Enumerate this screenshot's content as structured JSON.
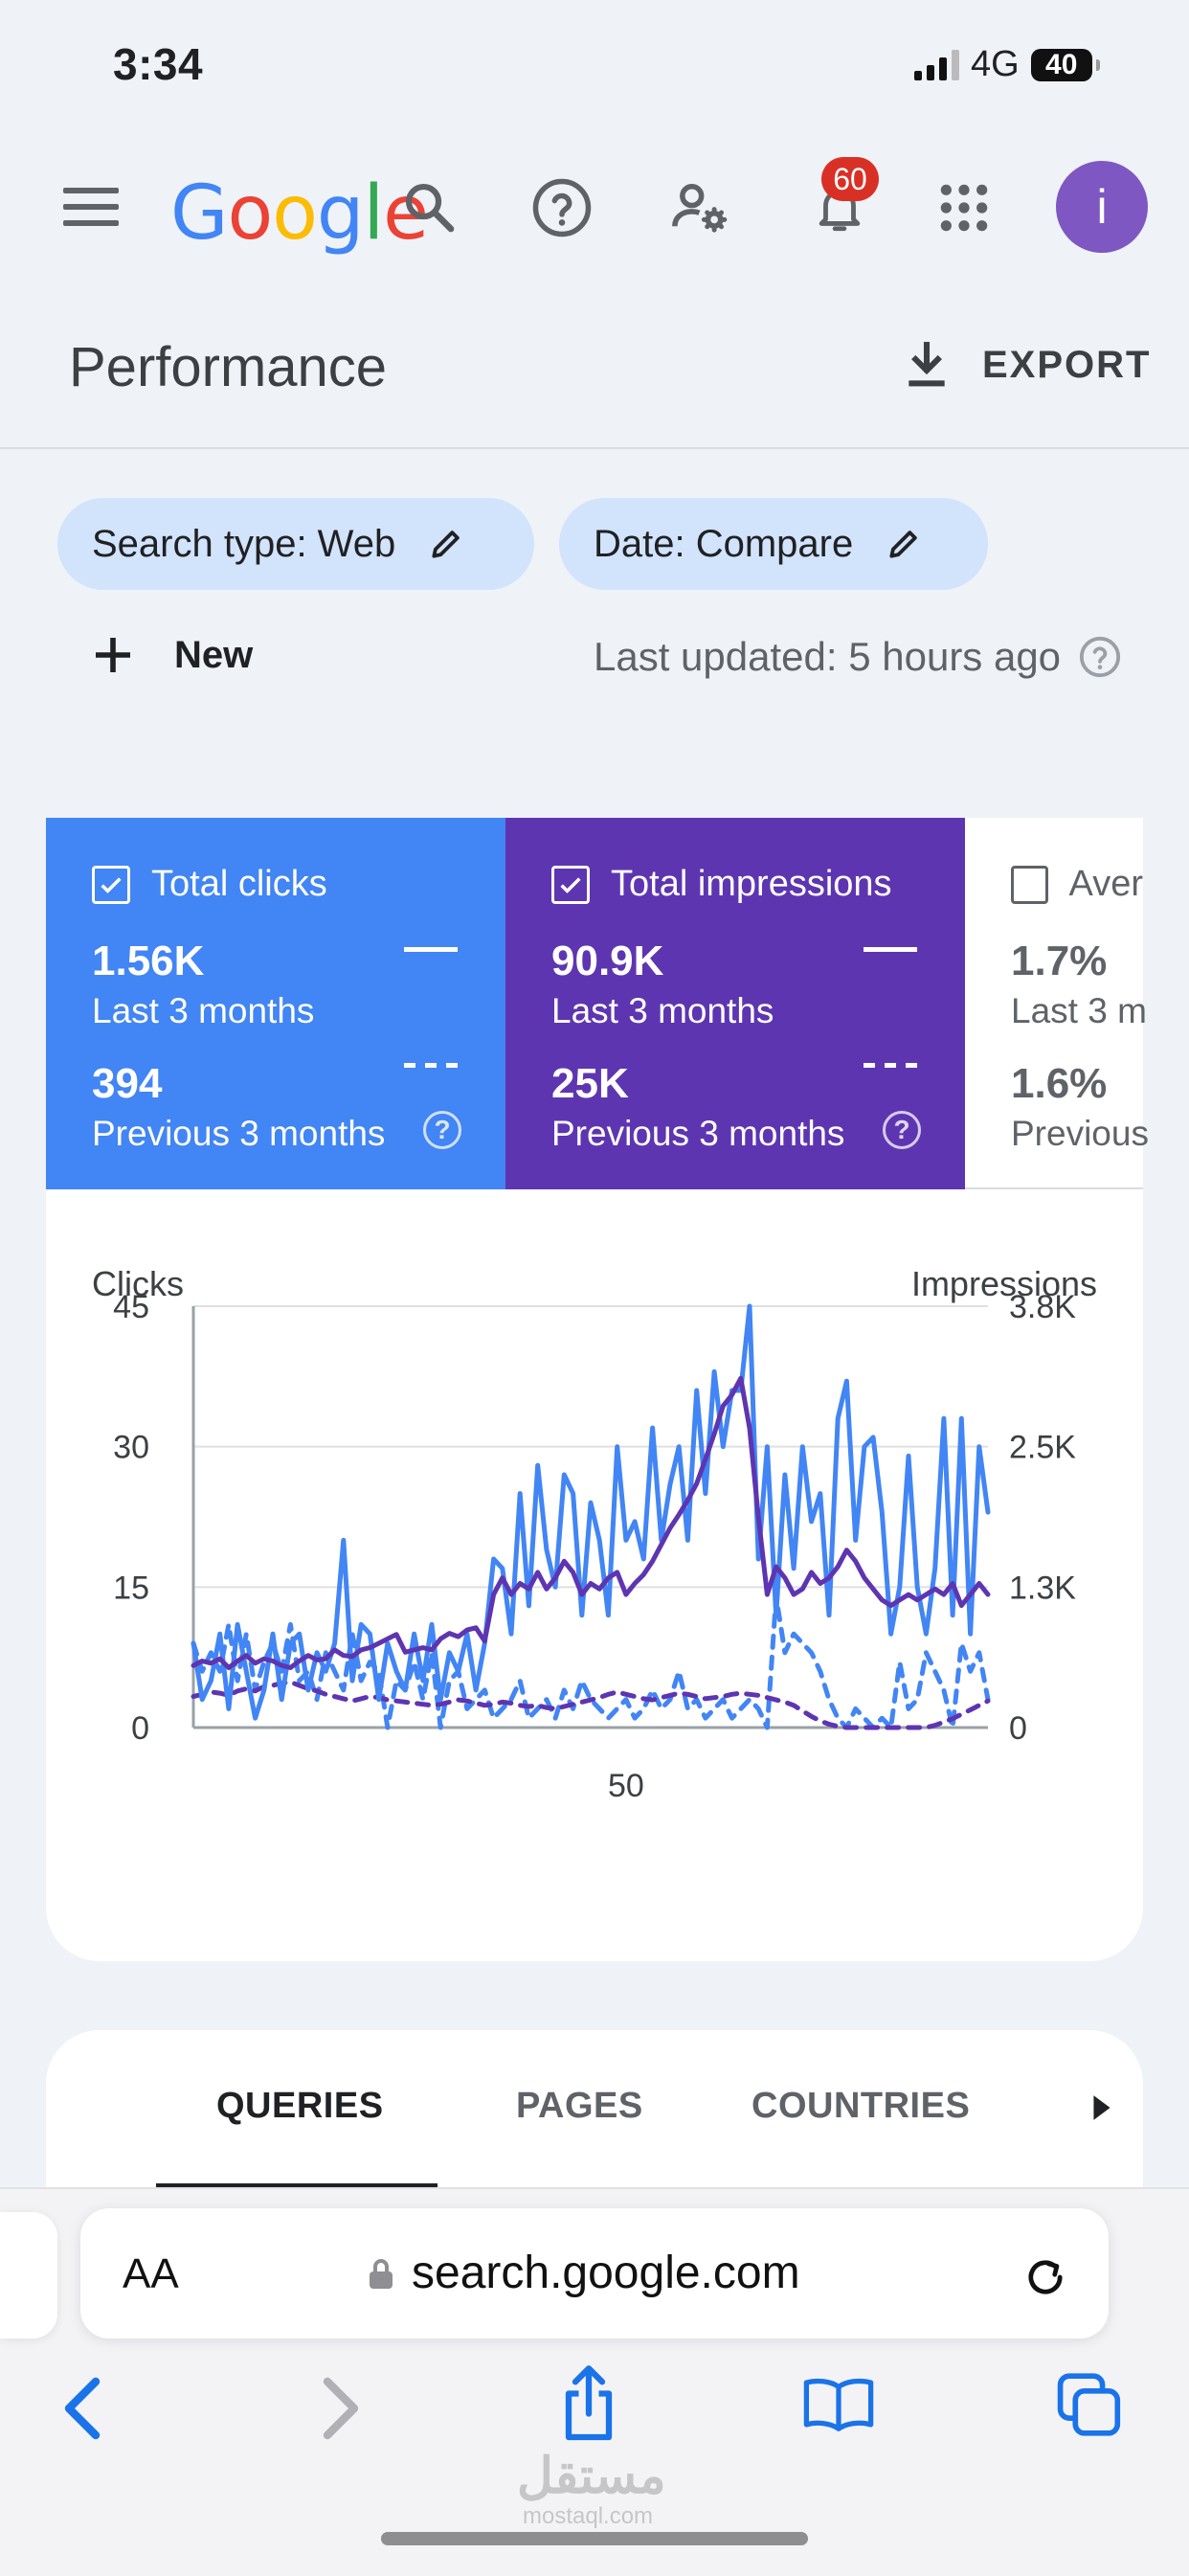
{
  "status_bar": {
    "time": "3:34",
    "network": "4G",
    "battery": "40"
  },
  "app_bar": {
    "logo": "Google",
    "notification_count": "60",
    "avatar_letter": "i",
    "icons": [
      "menu-icon",
      "search-icon",
      "help-icon",
      "manage-users-icon",
      "bell-icon",
      "apps-grid-icon"
    ]
  },
  "header": {
    "title": "Performance",
    "export_label": "EXPORT"
  },
  "filters": {
    "chips": [
      {
        "label": "Search type: Web"
      },
      {
        "label": "Date: Compare"
      }
    ],
    "new_label": "New",
    "last_updated": "Last updated: 5 hours ago"
  },
  "metrics": [
    {
      "label": "Total clicks",
      "checked": true,
      "value": "1.56K",
      "period": "Last 3 months",
      "prev_value": "394",
      "prev_period": "Previous 3 months",
      "color": "#4285f4"
    },
    {
      "label": "Total impressions",
      "checked": true,
      "value": "90.9K",
      "period": "Last 3 months",
      "prev_value": "25K",
      "prev_period": "Previous 3 months",
      "color": "#5e35b1"
    },
    {
      "label": "Aver",
      "checked": false,
      "value": "1.7%",
      "period": "Last 3 m",
      "prev_value": "1.6%",
      "prev_period": "Previous"
    }
  ],
  "chart_data": {
    "type": "line",
    "ylabel_left": "Clicks",
    "ylabel_right": "Impressions",
    "y_left_ticks": [
      "45",
      "30",
      "15",
      "0"
    ],
    "y_right_ticks": [
      "3.8K",
      "2.5K",
      "1.3K",
      "0"
    ],
    "x_ticks": [
      {
        "x": 50,
        "label": "50"
      }
    ],
    "ylim_left": [
      0,
      45
    ],
    "ylim_right": [
      0,
      3800
    ],
    "xlim": [
      1,
      91
    ],
    "grid": true,
    "series": [
      {
        "name": "Total clicks",
        "axis": "left",
        "style": "solid",
        "color": "#4285f4",
        "values": [
          9,
          3,
          5,
          10,
          2,
          11,
          6,
          1,
          4,
          10,
          3,
          9,
          10,
          4,
          8,
          6,
          9,
          20,
          5,
          11,
          10,
          3,
          9,
          6,
          4,
          10,
          5,
          11,
          3,
          8,
          6,
          10,
          4,
          9,
          18,
          17,
          10,
          25,
          13,
          28,
          19,
          15,
          27,
          25,
          12,
          24,
          20,
          12,
          30,
          20,
          22,
          18,
          32,
          20,
          26,
          30,
          20,
          36,
          25,
          38,
          30,
          36,
          36,
          45,
          18,
          30,
          12,
          27,
          17,
          30,
          22,
          25,
          12,
          33,
          37,
          20,
          30,
          31,
          23,
          10,
          15,
          29,
          15,
          10,
          17,
          33,
          12,
          33,
          10,
          30,
          23
        ]
      },
      {
        "name": "Total impressions",
        "axis": "right",
        "style": "solid",
        "color": "#5e35b1",
        "values": [
          560,
          600,
          580,
          620,
          540,
          600,
          650,
          580,
          620,
          600,
          560,
          540,
          600,
          650,
          610,
          620,
          700,
          650,
          640,
          700,
          720,
          760,
          800,
          840,
          680,
          700,
          720,
          700,
          800,
          850,
          820,
          880,
          900,
          780,
          1200,
          1350,
          1200,
          1300,
          1250,
          1400,
          1250,
          1350,
          1500,
          1400,
          1200,
          1300,
          1250,
          1350,
          1400,
          1200,
          1300,
          1380,
          1500,
          1650,
          1800,
          1920,
          2050,
          2200,
          2420,
          2650,
          2900,
          3000,
          3150,
          2700,
          1900,
          1200,
          1450,
          1350,
          1200,
          1250,
          1400,
          1300,
          1350,
          1450,
          1600,
          1500,
          1350,
          1250,
          1150,
          1100,
          1150,
          1200,
          1150,
          1200,
          1250,
          1200,
          1300,
          1100,
          1200,
          1300,
          1200
        ]
      },
      {
        "name": "Total clicks (previous)",
        "axis": "left",
        "style": "dashed",
        "color": "#4285f4",
        "values": [
          9,
          6,
          8,
          6,
          11,
          5,
          10,
          4,
          7,
          9,
          6,
          11,
          5,
          6,
          3,
          8,
          6,
          4,
          10,
          5,
          7,
          6,
          0,
          5,
          4,
          7,
          3,
          8,
          0,
          5,
          6,
          2,
          3,
          4,
          1,
          2,
          3,
          5,
          1,
          2,
          3,
          1,
          4,
          2,
          5,
          3,
          2,
          1,
          2,
          3,
          1,
          2,
          4,
          2,
          3,
          6,
          2,
          3,
          1,
          2,
          3,
          1,
          2,
          3,
          2,
          0,
          14,
          8,
          10,
          9,
          8,
          6,
          3,
          1,
          0,
          2,
          1,
          0,
          1,
          0,
          7,
          2,
          3,
          8,
          6,
          4,
          0,
          9,
          6,
          8,
          3
        ]
      },
      {
        "name": "Total impressions (previous)",
        "axis": "right",
        "style": "dashed",
        "color": "#5e35b1",
        "values": [
          280,
          300,
          320,
          310,
          290,
          330,
          350,
          330,
          370,
          380,
          400,
          410,
          380,
          350,
          330,
          300,
          280,
          260,
          240,
          260,
          280,
          270,
          250,
          240,
          230,
          220,
          210,
          200,
          210,
          230,
          250,
          240,
          220,
          200,
          210,
          230,
          220,
          200,
          190,
          200,
          180,
          170,
          190,
          210,
          230,
          250,
          270,
          300,
          320,
          300,
          280,
          260,
          250,
          270,
          290,
          310,
          300,
          280,
          260,
          270,
          280,
          300,
          310,
          300,
          290,
          270,
          250,
          230,
          200,
          150,
          100,
          60,
          30,
          10,
          0,
          0,
          0,
          0,
          0,
          0,
          0,
          0,
          0,
          0,
          20,
          50,
          80,
          120,
          160,
          200,
          240
        ]
      }
    ]
  },
  "tabs": [
    {
      "label": "QUERIES",
      "active": true
    },
    {
      "label": "PAGES",
      "active": false
    },
    {
      "label": "COUNTRIES",
      "active": false
    }
  ],
  "safari": {
    "text_size_label": "AA",
    "url": "search.google.com",
    "watermark": "مستقل",
    "watermark_sub": "mostaql.com"
  }
}
